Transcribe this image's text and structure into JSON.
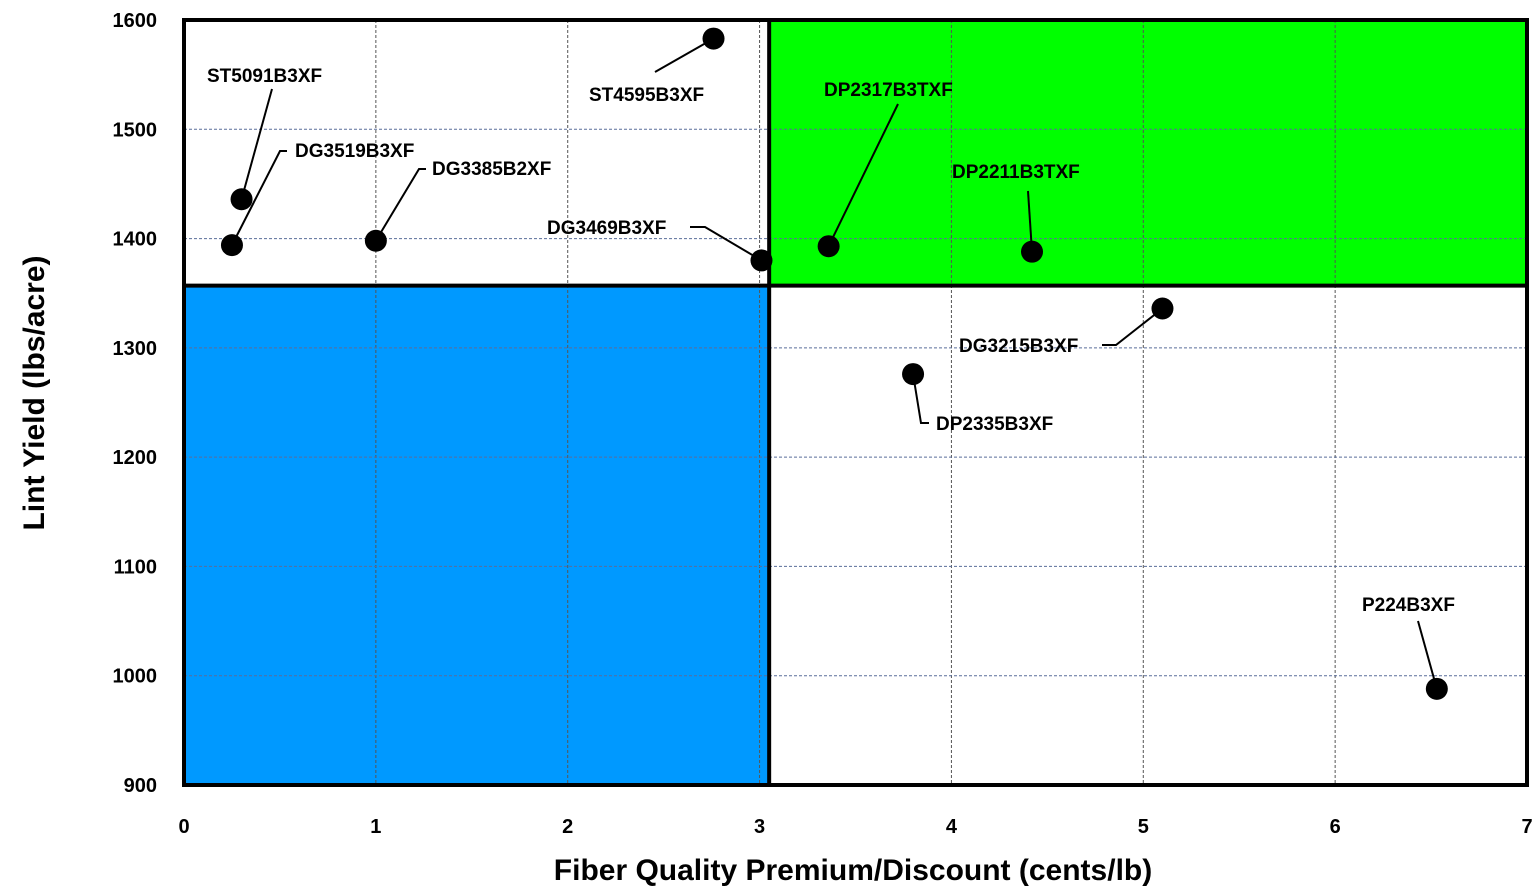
{
  "chart_data": {
    "type": "scatter",
    "title": "",
    "xlabel": "Fiber Quality Premium/Discount (cents/lb)",
    "ylabel": "Lint Yield (lbs/acre)",
    "xlim": [
      0,
      7
    ],
    "ylim": [
      900,
      1600
    ],
    "xticks": [
      0,
      1,
      2,
      3,
      4,
      5,
      6,
      7
    ],
    "yticks": [
      900,
      1000,
      1100,
      1200,
      1300,
      1400,
      1500,
      1600
    ],
    "grid": true,
    "threshold_x": 3.05,
    "threshold_y": 1357,
    "quadrant_colors": {
      "high_yield_high_quality": "#00ff00",
      "low_yield_low_quality": "#0099ff"
    },
    "points": [
      {
        "name": "ST5091B3XF",
        "x": 0.3,
        "y": 1436
      },
      {
        "name": "DG3519B3XF",
        "x": 0.25,
        "y": 1394
      },
      {
        "name": "DG3385B2XF",
        "x": 1.0,
        "y": 1398
      },
      {
        "name": "ST4595B3XF",
        "x": 2.76,
        "y": 1583
      },
      {
        "name": "DG3469B3XF",
        "x": 3.01,
        "y": 1380
      },
      {
        "name": "DP2317B3TXF",
        "x": 3.36,
        "y": 1393
      },
      {
        "name": "DP2211B3TXF",
        "x": 4.42,
        "y": 1388
      },
      {
        "name": "DG3215B3XF",
        "x": 5.1,
        "y": 1336
      },
      {
        "name": "DP2335B3XF",
        "x": 3.8,
        "y": 1276
      },
      {
        "name": "P224B3XF",
        "x": 6.53,
        "y": 988
      }
    ]
  }
}
